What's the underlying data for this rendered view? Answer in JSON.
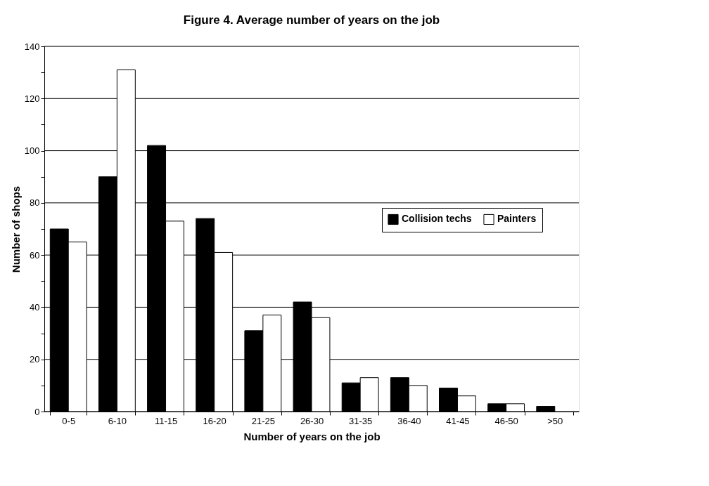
{
  "chart_data": {
    "type": "bar",
    "title": "Figure 4. Average number of years on the job",
    "xlabel": "Number of years on the job",
    "ylabel": "Number of shops",
    "categories": [
      "0-5",
      "6-10",
      "11-15",
      "16-20",
      "21-25",
      "26-30",
      "31-35",
      "36-40",
      "41-45",
      "46-50",
      ">50"
    ],
    "series": [
      {
        "name": "Collision techs",
        "color": "#000000",
        "values": [
          70,
          90,
          102,
          74,
          31,
          42,
          11,
          13,
          9,
          3,
          2
        ]
      },
      {
        "name": "Painters",
        "color": "#ffffff",
        "values": [
          65,
          131,
          73,
          61,
          37,
          36,
          13,
          10,
          6,
          3,
          null
        ]
      }
    ],
    "ylim": [
      0,
      140
    ],
    "yticks": [
      0,
      {
        "value": 10,
        "label": null
      },
      20,
      {
        "value": 30,
        "label": null
      },
      40,
      {
        "value": 50,
        "label": null
      },
      60,
      {
        "value": 70,
        "label": null
      },
      80,
      {
        "value": 90,
        "label": null
      },
      100,
      {
        "value": 110,
        "label": null
      },
      120,
      {
        "value": 130,
        "label": null
      },
      140
    ],
    "grid": "y",
    "legend": "right"
  }
}
